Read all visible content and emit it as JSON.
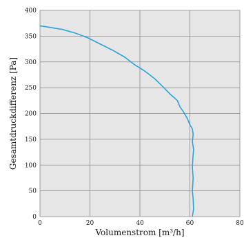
{
  "chart_data": {
    "type": "line",
    "title": "",
    "xlabel": "Volumenstrom [m³/h]",
    "ylabel": "Gesamtdruckdifferenz [Pa]",
    "xlim": [
      0,
      80
    ],
    "ylim": [
      0,
      400
    ],
    "x_ticks": [
      "0",
      "20",
      "40",
      "60",
      "80"
    ],
    "y_ticks": [
      "0",
      "50",
      "100",
      "150",
      "200",
      "250",
      "300",
      "350",
      "400"
    ],
    "grid": true,
    "colors": {
      "series": "#2aa3dc",
      "grid": "#888888",
      "plot_background": "#e6e6e6"
    },
    "series": [
      {
        "x": [
          0,
          4,
          9,
          14,
          19,
          24,
          29,
          34,
          38,
          42,
          46,
          49,
          52,
          55,
          56,
          57.5,
          59,
          60,
          61,
          61.3,
          61,
          61.5,
          61.2,
          61,
          61.3,
          61,
          61.3,
          61.5,
          61
        ],
        "y": [
          370,
          367,
          363,
          356,
          347,
          335,
          323,
          309,
          294,
          282,
          267,
          253,
          238,
          225,
          213,
          203,
          190,
          178,
          170,
          160,
          145,
          130,
          115,
          95,
          75,
          50,
          35,
          15,
          0
        ]
      }
    ]
  }
}
